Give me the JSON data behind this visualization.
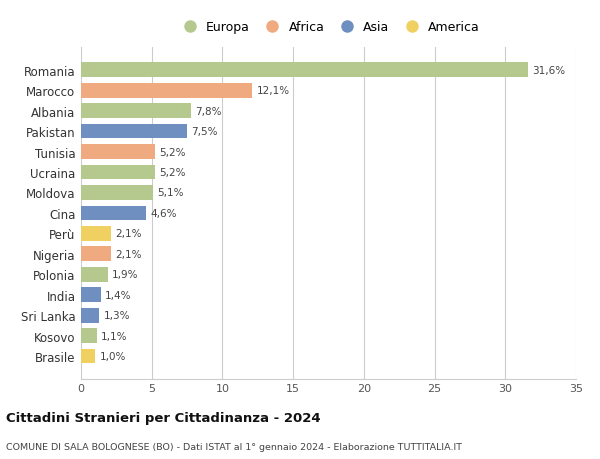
{
  "countries": [
    "Romania",
    "Marocco",
    "Albania",
    "Pakistan",
    "Tunisia",
    "Ucraina",
    "Moldova",
    "Cina",
    "Perù",
    "Nigeria",
    "Polonia",
    "India",
    "Sri Lanka",
    "Kosovo",
    "Brasile"
  ],
  "values": [
    31.6,
    12.1,
    7.8,
    7.5,
    5.2,
    5.2,
    5.1,
    4.6,
    2.1,
    2.1,
    1.9,
    1.4,
    1.3,
    1.1,
    1.0
  ],
  "labels": [
    "31,6%",
    "12,1%",
    "7,8%",
    "7,5%",
    "5,2%",
    "5,2%",
    "5,1%",
    "4,6%",
    "2,1%",
    "2,1%",
    "1,9%",
    "1,4%",
    "1,3%",
    "1,1%",
    "1,0%"
  ],
  "continents": [
    "Europa",
    "Africa",
    "Europa",
    "Asia",
    "Africa",
    "Europa",
    "Europa",
    "Asia",
    "America",
    "Africa",
    "Europa",
    "Asia",
    "Asia",
    "Europa",
    "America"
  ],
  "colors": {
    "Europa": "#b5c98e",
    "Africa": "#f0aa80",
    "Asia": "#6f8fc0",
    "America": "#f0d060"
  },
  "legend_order": [
    "Europa",
    "Africa",
    "Asia",
    "America"
  ],
  "xlim": [
    0,
    35
  ],
  "xticks": [
    0,
    5,
    10,
    15,
    20,
    25,
    30,
    35
  ],
  "title": "Cittadini Stranieri per Cittadinanza - 2024",
  "subtitle": "COMUNE DI SALA BOLOGNESE (BO) - Dati ISTAT al 1° gennaio 2024 - Elaborazione TUTTITALIA.IT",
  "bg_color": "#ffffff",
  "grid_color": "#cccccc",
  "bar_height": 0.72
}
